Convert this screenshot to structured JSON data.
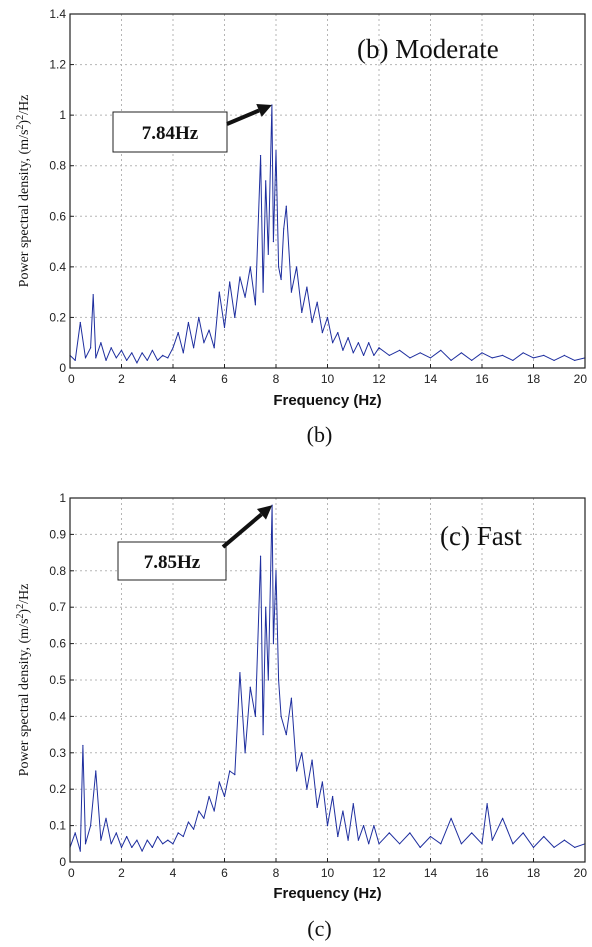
{
  "chart_data": [
    {
      "type": "line",
      "panel": "b",
      "title": "(b) Moderate",
      "xlabel": "Frequency (Hz)",
      "ylabel": "Power spectral density, (m/s²)²/Hz",
      "ylabel_parts": [
        "Power spectral density, (m/s",
        "2",
        ")",
        "2",
        "/Hz"
      ],
      "xlim": [
        0,
        20
      ],
      "ylim": [
        0,
        1.4
      ],
      "xticks": [
        0,
        2,
        4,
        6,
        8,
        10,
        12,
        14,
        16,
        18,
        20
      ],
      "yticks": [
        0,
        0.2,
        0.4,
        0.6,
        0.8,
        1,
        1.2,
        1.4
      ],
      "ytick_labels": [
        "0",
        "0.2",
        "0.4",
        "0.6",
        "0.8",
        "1",
        "1.2",
        "1.4"
      ],
      "grid": true,
      "caption": "(b)",
      "annotation": {
        "text": "7.84Hz",
        "x": 7.84,
        "y": 1.04
      },
      "series": [
        {
          "color": "#1f2f9f",
          "x": [
            0.0,
            0.2,
            0.4,
            0.6,
            0.8,
            0.9,
            1.0,
            1.2,
            1.4,
            1.6,
            1.8,
            2.0,
            2.2,
            2.4,
            2.6,
            2.8,
            3.0,
            3.2,
            3.4,
            3.6,
            3.8,
            4.0,
            4.2,
            4.4,
            4.6,
            4.8,
            5.0,
            5.2,
            5.4,
            5.6,
            5.8,
            6.0,
            6.2,
            6.4,
            6.6,
            6.8,
            7.0,
            7.2,
            7.4,
            7.5,
            7.6,
            7.7,
            7.84,
            7.9,
            8.0,
            8.1,
            8.2,
            8.3,
            8.4,
            8.6,
            8.8,
            9.0,
            9.2,
            9.4,
            9.6,
            9.8,
            10.0,
            10.2,
            10.4,
            10.6,
            10.8,
            11.0,
            11.2,
            11.4,
            11.6,
            11.8,
            12.0,
            12.4,
            12.8,
            13.2,
            13.6,
            14.0,
            14.4,
            14.8,
            15.2,
            15.6,
            16.0,
            16.4,
            16.8,
            17.2,
            17.6,
            18.0,
            18.4,
            18.8,
            19.2,
            19.6,
            20.0
          ],
          "y": [
            0.05,
            0.03,
            0.18,
            0.04,
            0.08,
            0.29,
            0.04,
            0.1,
            0.03,
            0.08,
            0.04,
            0.07,
            0.03,
            0.06,
            0.02,
            0.06,
            0.03,
            0.07,
            0.03,
            0.05,
            0.04,
            0.08,
            0.14,
            0.06,
            0.18,
            0.08,
            0.2,
            0.1,
            0.15,
            0.08,
            0.3,
            0.16,
            0.34,
            0.2,
            0.36,
            0.28,
            0.4,
            0.25,
            0.84,
            0.3,
            0.74,
            0.45,
            1.04,
            0.5,
            0.86,
            0.4,
            0.35,
            0.55,
            0.64,
            0.3,
            0.4,
            0.22,
            0.32,
            0.18,
            0.26,
            0.14,
            0.2,
            0.1,
            0.14,
            0.07,
            0.12,
            0.06,
            0.1,
            0.05,
            0.1,
            0.05,
            0.08,
            0.05,
            0.07,
            0.04,
            0.06,
            0.04,
            0.07,
            0.03,
            0.06,
            0.03,
            0.06,
            0.04,
            0.05,
            0.03,
            0.06,
            0.04,
            0.05,
            0.03,
            0.05,
            0.03,
            0.04
          ]
        }
      ]
    },
    {
      "type": "line",
      "panel": "c",
      "title": "(c) Fast",
      "xlabel": "Frequency (Hz)",
      "ylabel": "Power spectral density, (m/s²)²/Hz",
      "ylabel_parts": [
        "Power spectral density, (m/s",
        "2",
        ")",
        "2",
        "/Hz"
      ],
      "xlim": [
        0,
        20
      ],
      "ylim": [
        0,
        1
      ],
      "xticks": [
        0,
        2,
        4,
        6,
        8,
        10,
        12,
        14,
        16,
        18,
        20
      ],
      "yticks": [
        0,
        0.1,
        0.2,
        0.3,
        0.4,
        0.5,
        0.6,
        0.7,
        0.8,
        0.9,
        1
      ],
      "ytick_labels": [
        "0",
        "0.1",
        "0.2",
        "0.3",
        "0.4",
        "0.5",
        "0.6",
        "0.7",
        "0.8",
        "0.9",
        "1"
      ],
      "grid": true,
      "caption": "(c)",
      "annotation": {
        "text": "7.85Hz",
        "x": 7.85,
        "y": 0.98
      },
      "series": [
        {
          "color": "#1f2f9f",
          "x": [
            0.0,
            0.2,
            0.4,
            0.5,
            0.6,
            0.8,
            1.0,
            1.2,
            1.4,
            1.6,
            1.8,
            2.0,
            2.2,
            2.4,
            2.6,
            2.8,
            3.0,
            3.2,
            3.4,
            3.6,
            3.8,
            4.0,
            4.2,
            4.4,
            4.6,
            4.8,
            5.0,
            5.2,
            5.4,
            5.6,
            5.8,
            6.0,
            6.2,
            6.4,
            6.6,
            6.8,
            7.0,
            7.2,
            7.4,
            7.5,
            7.6,
            7.7,
            7.85,
            7.9,
            8.0,
            8.1,
            8.2,
            8.4,
            8.6,
            8.8,
            9.0,
            9.2,
            9.4,
            9.6,
            9.8,
            10.0,
            10.2,
            10.4,
            10.6,
            10.8,
            11.0,
            11.2,
            11.4,
            11.6,
            11.8,
            12.0,
            12.4,
            12.8,
            13.2,
            13.6,
            14.0,
            14.4,
            14.8,
            15.2,
            15.6,
            16.0,
            16.2,
            16.4,
            16.8,
            17.2,
            17.6,
            18.0,
            18.4,
            18.8,
            19.2,
            19.6,
            20.0
          ],
          "y": [
            0.04,
            0.08,
            0.03,
            0.32,
            0.05,
            0.1,
            0.25,
            0.06,
            0.12,
            0.05,
            0.08,
            0.04,
            0.07,
            0.04,
            0.06,
            0.03,
            0.06,
            0.04,
            0.07,
            0.05,
            0.06,
            0.05,
            0.08,
            0.07,
            0.11,
            0.09,
            0.14,
            0.12,
            0.18,
            0.14,
            0.22,
            0.18,
            0.25,
            0.24,
            0.52,
            0.3,
            0.48,
            0.4,
            0.84,
            0.35,
            0.7,
            0.5,
            0.98,
            0.6,
            0.8,
            0.5,
            0.4,
            0.35,
            0.45,
            0.25,
            0.3,
            0.2,
            0.28,
            0.15,
            0.22,
            0.1,
            0.18,
            0.07,
            0.14,
            0.06,
            0.16,
            0.06,
            0.1,
            0.05,
            0.1,
            0.05,
            0.08,
            0.05,
            0.08,
            0.04,
            0.07,
            0.05,
            0.12,
            0.05,
            0.08,
            0.05,
            0.16,
            0.06,
            0.12,
            0.05,
            0.08,
            0.04,
            0.07,
            0.04,
            0.06,
            0.04,
            0.05
          ]
        }
      ]
    }
  ]
}
